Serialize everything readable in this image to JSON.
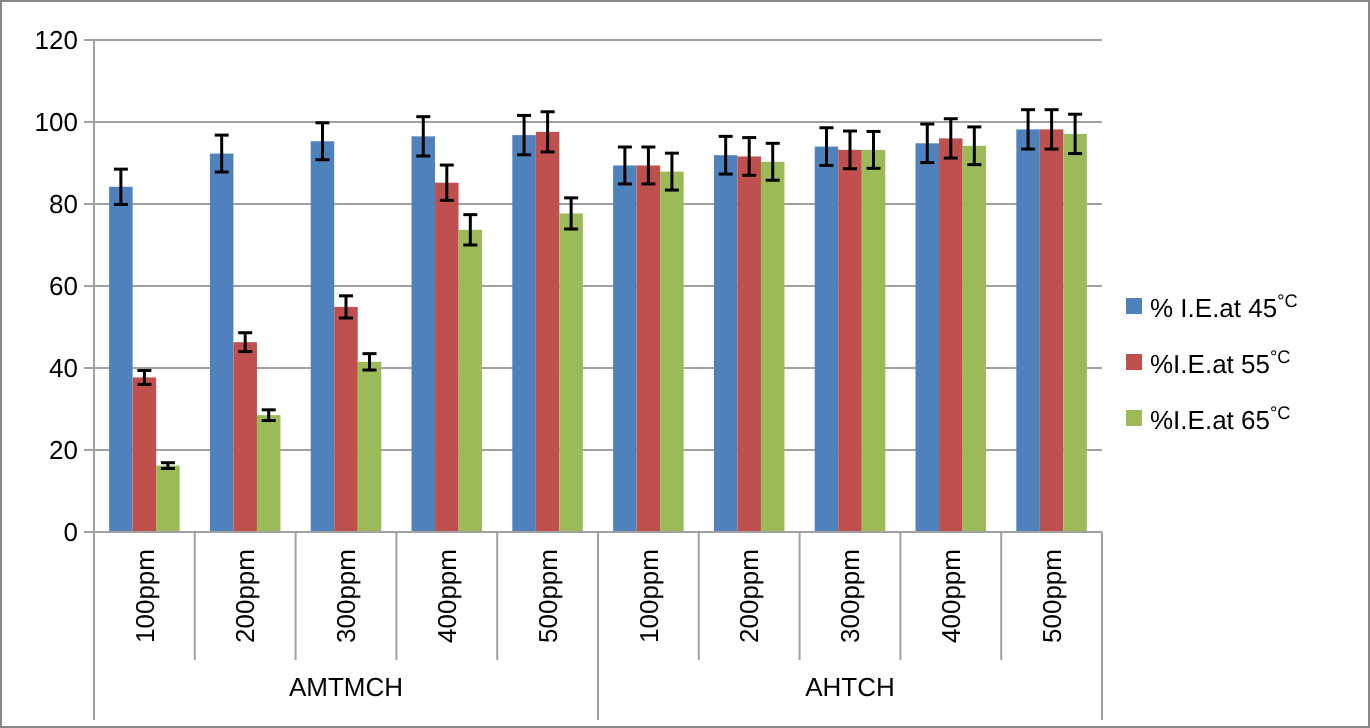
{
  "chart_data": {
    "type": "bar",
    "categories": [
      "100ppm",
      "200ppm",
      "300ppm",
      "400ppm",
      "500ppm",
      "100ppm",
      "200ppm",
      "300ppm",
      "400ppm",
      "500ppm"
    ],
    "annotations": [
      "AMTMCH",
      "AHTCH"
    ],
    "series": [
      {
        "name": "% I.E.at 45$^{°C}$",
        "color": "#4f81bd",
        "values": [
          84.2,
          92.3,
          95.3,
          96.5,
          96.8,
          89.4,
          91.9,
          94.0,
          94.8,
          98.2
        ],
        "errors": [
          4.3,
          4.5,
          4.5,
          4.8,
          4.8,
          4.5,
          4.6,
          4.6,
          4.7,
          4.8
        ]
      },
      {
        "name": "%I.E.at 55$^{°C}$",
        "color": "#c0504d",
        "values": [
          37.7,
          46.3,
          54.9,
          85.2,
          97.6,
          89.4,
          91.6,
          93.2,
          96.0,
          98.2
        ],
        "errors": [
          1.7,
          2.3,
          2.7,
          4.3,
          4.9,
          4.5,
          4.6,
          4.6,
          4.8,
          4.8
        ]
      },
      {
        "name": "%I.E.at 65$^{°C}$",
        "color": "#9bbb59",
        "values": [
          16.2,
          28.5,
          41.5,
          73.7,
          77.7,
          87.9,
          90.3,
          93.2,
          94.2,
          97.1
        ],
        "errors": [
          0.7,
          1.3,
          2.0,
          3.7,
          3.8,
          4.5,
          4.5,
          4.5,
          4.6,
          4.8
        ]
      }
    ],
    "ylim": [
      0,
      120
    ],
    "yticks": [
      0,
      20,
      40,
      60,
      80,
      100,
      120
    ],
    "grid": "y",
    "legend": "right"
  }
}
